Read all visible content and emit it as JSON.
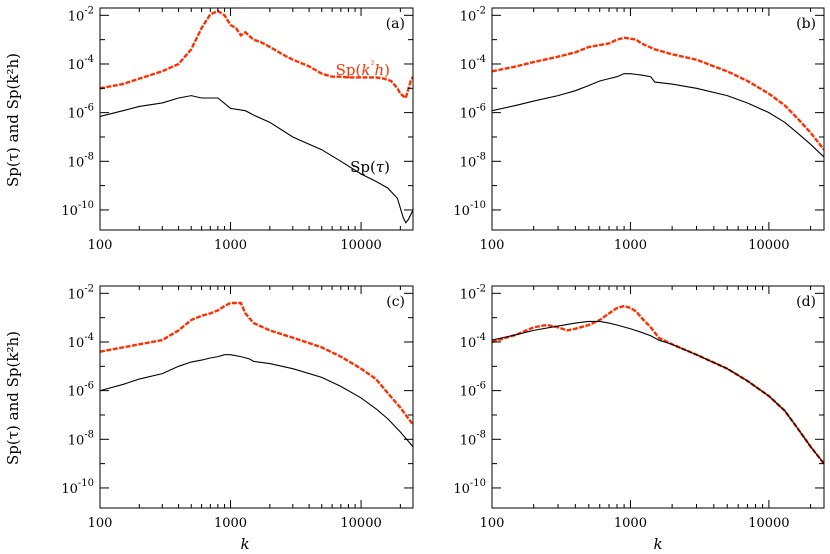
{
  "figure": {
    "xlabel": "k",
    "ylabel": "Sp(τ)  and  Sp(k²h)"
  },
  "colors": {
    "tau": "#000000",
    "k2h": "#ff3000"
  },
  "chart_data": [
    {
      "type": "line",
      "panel_label": "(a)",
      "xscale": "log",
      "yscale": "log",
      "xlim": [
        100,
        25000
      ],
      "ylim": [
        1.5e-11,
        0.02
      ],
      "xticks": [
        100,
        1000,
        10000
      ],
      "xtick_labels": [
        "100",
        "1000",
        "10000"
      ],
      "yticks": [
        1e-10,
        1e-08,
        1e-06,
        0.0001,
        0.01
      ],
      "ytick_labels": [
        {
          "base": "10",
          "exp": "-10"
        },
        {
          "base": "10",
          "exp": "-8"
        },
        {
          "base": "10",
          "exp": "-6"
        },
        {
          "base": "10",
          "exp": "-4"
        },
        {
          "base": "10",
          "exp": "-2"
        }
      ],
      "show_xtick_labels": true,
      "show_xlabel": false,
      "show_ylabel": true,
      "annotations": [
        {
          "series": "Sp(k²h)",
          "parts": [
            "Sp(",
            "k",
            "²",
            "h",
            ")"
          ],
          "position": "upper-right"
        },
        {
          "series": "Sp(τ)",
          "parts": [
            "Sp(",
            "τ",
            ")"
          ],
          "position": "middle-right"
        }
      ],
      "series": [
        {
          "name": "Sp(k²h)",
          "style": "dashed-thick",
          "color": "#ff3000",
          "x": [
            100,
            150,
            200,
            300,
            400,
            500,
            600,
            700,
            800,
            900,
            1000,
            1100,
            1200,
            1300,
            1500,
            1700,
            2000,
            2500,
            3000,
            4000,
            5000,
            6000,
            7000,
            8000,
            10000,
            13000,
            15000,
            17000,
            19000,
            20000,
            22000,
            24000,
            25000
          ],
          "y": [
            1e-05,
            1.5e-05,
            2.5e-05,
            5e-05,
            0.0001,
            0.0004,
            0.003,
            0.011,
            0.015,
            0.01,
            0.004,
            0.003,
            0.0015,
            0.002,
            0.001,
            0.0008,
            0.0005,
            0.00025,
            0.00015,
            8e-05,
            4e-05,
            3e-05,
            3e-05,
            2.8e-05,
            2.8e-05,
            2.8e-05,
            2.5e-05,
            2e-05,
            1e-05,
            6e-06,
            4e-06,
            2e-05,
            3e-05
          ]
        },
        {
          "name": "Sp(τ)",
          "style": "solid",
          "color": "#000000",
          "x": [
            100,
            150,
            200,
            300,
            400,
            500,
            600,
            700,
            800,
            1000,
            1300,
            1500,
            2000,
            3000,
            4000,
            5000,
            7000,
            10000,
            13000,
            16000,
            19000,
            21000,
            22000,
            23000,
            25000
          ],
          "y": [
            7e-07,
            1.2e-06,
            1.8e-06,
            2.5e-06,
            4e-06,
            5e-06,
            4e-06,
            4e-06,
            4e-06,
            1.5e-06,
            1.2e-06,
            8e-07,
            4e-07,
            1e-07,
            5e-08,
            3e-08,
            1e-08,
            3e-09,
            1.5e-09,
            8e-10,
            3e-10,
            5e-11,
            3e-11,
            4e-11,
            1e-10
          ]
        }
      ]
    },
    {
      "type": "line",
      "panel_label": "(b)",
      "xscale": "log",
      "yscale": "log",
      "xlim": [
        100,
        25000
      ],
      "ylim": [
        1.5e-11,
        0.02
      ],
      "xticks": [
        100,
        1000,
        10000
      ],
      "xtick_labels": [
        "100",
        "1000",
        "10000"
      ],
      "yticks": [
        1e-10,
        1e-08,
        1e-06,
        0.0001,
        0.01
      ],
      "ytick_labels": [
        {
          "base": "10",
          "exp": "-10"
        },
        {
          "base": "10",
          "exp": "-8"
        },
        {
          "base": "10",
          "exp": "-6"
        },
        {
          "base": "10",
          "exp": "-4"
        },
        {
          "base": "10",
          "exp": "-2"
        }
      ],
      "show_xtick_labels": true,
      "show_xlabel": false,
      "show_ylabel": false,
      "annotations": [],
      "series": [
        {
          "name": "Sp(k²h)",
          "style": "dashed-thick",
          "color": "#ff3000",
          "x": [
            100,
            150,
            200,
            300,
            400,
            500,
            600,
            700,
            800,
            900,
            1000,
            1100,
            1200,
            1500,
            2000,
            3000,
            4000,
            5000,
            7000,
            10000,
            13000,
            16000,
            20000,
            25000
          ],
          "y": [
            5e-05,
            8e-05,
            0.00012,
            0.0002,
            0.0003,
            0.0005,
            0.0006,
            0.0007,
            0.001,
            0.0012,
            0.0011,
            0.001,
            0.0007,
            0.0004,
            0.00025,
            0.00015,
            8e-05,
            5e-05,
            2e-05,
            6e-06,
            2e-06,
            6e-07,
            1.5e-07,
            3e-08
          ]
        },
        {
          "name": "Sp(τ)",
          "style": "solid",
          "color": "#000000",
          "x": [
            100,
            150,
            200,
            300,
            400,
            500,
            600,
            700,
            800,
            900,
            1000,
            1200,
            1400,
            1500,
            2000,
            3000,
            5000,
            7000,
            10000,
            13000,
            16000,
            20000,
            25000
          ],
          "y": [
            1.2e-06,
            2e-06,
            3e-06,
            5e-06,
            8e-06,
            1.3e-05,
            2e-05,
            2.5e-05,
            3e-05,
            4e-05,
            4e-05,
            3.5e-05,
            3e-05,
            1.8e-05,
            1.5e-05,
            1e-05,
            5e-06,
            2.5e-06,
            1e-06,
            4e-07,
            1.5e-07,
            5e-08,
            1.5e-08
          ]
        }
      ]
    },
    {
      "type": "line",
      "panel_label": "(c)",
      "xscale": "log",
      "yscale": "log",
      "xlim": [
        100,
        25000
      ],
      "ylim": [
        1.5e-11,
        0.02
      ],
      "xticks": [
        100,
        1000,
        10000
      ],
      "xtick_labels": [
        "100",
        "1000",
        "10000"
      ],
      "yticks": [
        1e-10,
        1e-08,
        1e-06,
        0.0001,
        0.01
      ],
      "ytick_labels": [
        {
          "base": "10",
          "exp": "-10"
        },
        {
          "base": "10",
          "exp": "-8"
        },
        {
          "base": "10",
          "exp": "-6"
        },
        {
          "base": "10",
          "exp": "-4"
        },
        {
          "base": "10",
          "exp": "-2"
        }
      ],
      "show_xtick_labels": true,
      "show_xlabel": true,
      "show_ylabel": true,
      "annotations": [],
      "series": [
        {
          "name": "Sp(k²h)",
          "style": "dashed-thick",
          "color": "#ff3000",
          "x": [
            100,
            150,
            200,
            300,
            400,
            500,
            600,
            700,
            800,
            900,
            1000,
            1100,
            1200,
            1300,
            1500,
            2000,
            3000,
            5000,
            7000,
            10000,
            13000,
            16000,
            20000,
            25000
          ],
          "y": [
            4e-05,
            6e-05,
            8e-05,
            0.00012,
            0.0003,
            0.0008,
            0.0012,
            0.0015,
            0.002,
            0.003,
            0.004,
            0.004,
            0.004,
            0.0015,
            0.0006,
            0.0003,
            0.00015,
            6e-05,
            2.5e-05,
            8e-06,
            3e-06,
            8e-07,
            2e-07,
            4e-08
          ]
        },
        {
          "name": "Sp(τ)",
          "style": "solid",
          "color": "#000000",
          "x": [
            100,
            150,
            200,
            300,
            400,
            500,
            600,
            700,
            800,
            900,
            1000,
            1200,
            1400,
            1500,
            2000,
            3000,
            5000,
            7000,
            10000,
            13000,
            16000,
            20000,
            25000
          ],
          "y": [
            1e-06,
            1.8e-06,
            3e-06,
            5e-06,
            1e-05,
            1.5e-05,
            1.8e-05,
            2.2e-05,
            2.5e-05,
            3e-05,
            3e-05,
            2.5e-05,
            2e-05,
            1.6e-05,
            1.3e-05,
            8e-06,
            3.5e-06,
            1.5e-06,
            5e-07,
            1.8e-07,
            7e-08,
            2e-08,
            5e-09
          ]
        }
      ]
    },
    {
      "type": "line",
      "panel_label": "(d)",
      "xscale": "log",
      "yscale": "log",
      "xlim": [
        100,
        25000
      ],
      "ylim": [
        1.5e-11,
        0.02
      ],
      "xticks": [
        100,
        1000,
        10000
      ],
      "xtick_labels": [
        "100",
        "1000",
        "10000"
      ],
      "yticks": [
        1e-10,
        1e-08,
        1e-06,
        0.0001,
        0.01
      ],
      "ytick_labels": [
        {
          "base": "10",
          "exp": "-10"
        },
        {
          "base": "10",
          "exp": "-8"
        },
        {
          "base": "10",
          "exp": "-6"
        },
        {
          "base": "10",
          "exp": "-4"
        },
        {
          "base": "10",
          "exp": "-2"
        }
      ],
      "show_xtick_labels": true,
      "show_xlabel": true,
      "show_ylabel": false,
      "annotations": [],
      "series": [
        {
          "name": "Sp(k²h)",
          "style": "dashed-thick",
          "color": "#ff3000",
          "x": [
            100,
            150,
            200,
            250,
            300,
            350,
            400,
            500,
            600,
            700,
            800,
            900,
            1000,
            1100,
            1200,
            1400,
            1600,
            2000,
            3000,
            5000,
            7000,
            10000,
            13000,
            16000,
            20000,
            25000
          ],
          "y": [
            0.0001,
            0.0002,
            0.0004,
            0.0005,
            0.0004,
            0.0003,
            0.00035,
            0.0005,
            0.0008,
            0.0015,
            0.0025,
            0.003,
            0.0025,
            0.0018,
            0.001,
            0.0004,
            0.00015,
            8e-05,
            3e-05,
            8e-06,
            2.5e-06,
            6e-07,
            1.5e-07,
            3e-08,
            5e-09,
            1e-09
          ]
        },
        {
          "name": "Sp(τ)",
          "style": "solid",
          "color": "#000000",
          "x": [
            100,
            150,
            200,
            300,
            400,
            500,
            600,
            700,
            800,
            1000,
            1200,
            1400,
            1600,
            2000,
            3000,
            5000,
            7000,
            10000,
            13000,
            16000,
            20000,
            25000
          ],
          "y": [
            0.00012,
            0.0002,
            0.0003,
            0.00045,
            0.0006,
            0.0007,
            0.0007,
            0.0006,
            0.0005,
            0.00035,
            0.00025,
            0.00018,
            0.00012,
            8e-05,
            3e-05,
            8e-06,
            2.5e-06,
            6e-07,
            1.5e-07,
            3e-08,
            5e-09,
            1e-09
          ]
        }
      ]
    }
  ]
}
